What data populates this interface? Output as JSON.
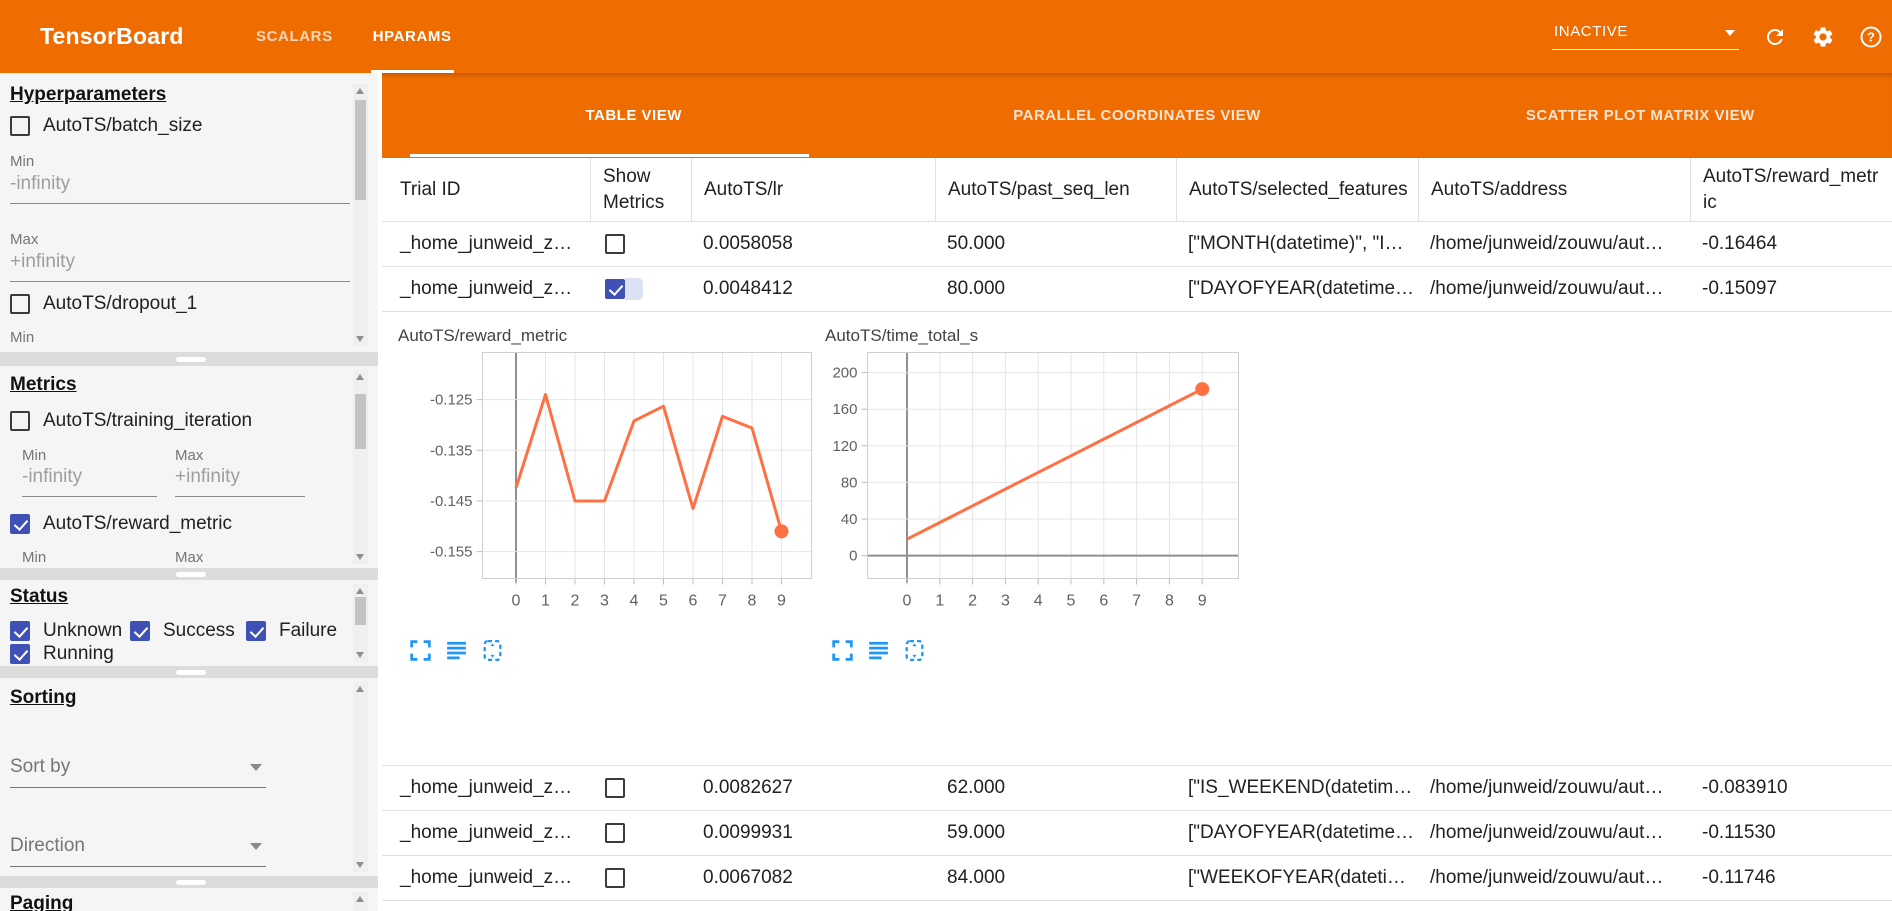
{
  "toolbar": {
    "title": "TensorBoard",
    "tabs": [
      {
        "label": "SCALARS"
      },
      {
        "label": "HPARAMS"
      }
    ],
    "run_status": "INACTIVE"
  },
  "sidebar": {
    "hyperparameters": {
      "heading": "Hyperparameters",
      "param1_label": "AutoTS/batch_size",
      "param1_checked": false,
      "min_label": "Min",
      "min_value": "-infinity",
      "max_label": "Max",
      "max_value": "+infinity",
      "param2_label": "AutoTS/dropout_1",
      "param2_checked": false,
      "min2_label": "Min"
    },
    "metrics": {
      "heading": "Metrics",
      "metric1_label": "AutoTS/training_iteration",
      "metric1_checked": false,
      "min_label": "Min",
      "min_value": "-infinity",
      "max_label": "Max",
      "max_value": "+infinity",
      "metric2_label": "AutoTS/reward_metric",
      "metric2_checked": true,
      "min2_label": "Min",
      "max2_label": "Max"
    },
    "status": {
      "heading": "Status",
      "options": [
        {
          "label": "Unknown",
          "checked": true
        },
        {
          "label": "Success",
          "checked": true
        },
        {
          "label": "Failure",
          "checked": true
        },
        {
          "label": "Running",
          "checked": true
        }
      ]
    },
    "sorting": {
      "heading": "Sorting",
      "sort_by_placeholder": "Sort by",
      "direction_placeholder": "Direction"
    },
    "paging": {
      "heading": "Paging"
    }
  },
  "main": {
    "view_tabs": [
      {
        "label": "TABLE VIEW"
      },
      {
        "label": "PARALLEL COORDINATES VIEW"
      },
      {
        "label": "SCATTER PLOT MATRIX VIEW"
      }
    ],
    "table": {
      "columns": [
        "Trial ID",
        "Show Metrics",
        "AutoTS/lr",
        "AutoTS/past_seq_len",
        "AutoTS/selected_features",
        "AutoTS/address",
        "AutoTS/reward_metric"
      ],
      "rows_top": [
        {
          "trial_id": "_home_junweid_z…",
          "show_metrics": false,
          "lr": "0.0058058",
          "past_seq_len": "50.000",
          "selected_features": "[\"MONTH(datetime)\", \"I…",
          "address": "/home/junweid/zouwu/aut…",
          "reward_metric": "-0.16464"
        },
        {
          "trial_id": "_home_junweid_z…",
          "show_metrics": true,
          "lr": "0.0048412",
          "past_seq_len": "80.000",
          "selected_features": "[\"DAYOFYEAR(datetime…",
          "address": "/home/junweid/zouwu/aut…",
          "reward_metric": "-0.15097"
        }
      ],
      "rows_bottom": [
        {
          "trial_id": "_home_junweid_z…",
          "show_metrics": false,
          "lr": "0.0082627",
          "past_seq_len": "62.000",
          "selected_features": "[\"IS_WEEKEND(datetim…",
          "address": "/home/junweid/zouwu/aut…",
          "reward_metric": "-0.083910"
        },
        {
          "trial_id": "_home_junweid_z…",
          "show_metrics": false,
          "lr": "0.0099931",
          "past_seq_len": "59.000",
          "selected_features": "[\"DAYOFYEAR(datetime…",
          "address": "/home/junweid/zouwu/aut…",
          "reward_metric": "-0.11530"
        },
        {
          "trial_id": "_home_junweid_z…",
          "show_metrics": false,
          "lr": "0.0067082",
          "past_seq_len": "84.000",
          "selected_features": "[\"WEEKOFYEAR(dateti…",
          "address": "/home/junweid/zouwu/aut…",
          "reward_metric": "-0.11746"
        }
      ]
    }
  },
  "chart_data": [
    {
      "type": "line",
      "title": "AutoTS/reward_metric",
      "xlabel": "",
      "ylabel": "",
      "x": [
        0,
        1,
        2,
        3,
        4,
        5,
        6,
        7,
        8,
        9
      ],
      "values": [
        -0.1424,
        -0.124,
        -0.145,
        -0.145,
        -0.1292,
        -0.1263,
        -0.1465,
        -0.1283,
        -0.1306,
        -0.151
      ],
      "yticks": [
        -0.125,
        -0.135,
        -0.145,
        -0.155
      ],
      "ylim": [
        -0.1603,
        -0.1157
      ],
      "grid": true,
      "legend": false,
      "line_color": "#ff7043",
      "end_marker": true,
      "zero_line": false
    },
    {
      "type": "line",
      "title": "AutoTS/time_total_s",
      "xlabel": "",
      "ylabel": "",
      "x": [
        0,
        1,
        2,
        3,
        4,
        5,
        6,
        7,
        8,
        9
      ],
      "values": [
        18,
        36.2,
        54.4,
        72.7,
        90.9,
        109.1,
        127.3,
        145.6,
        163.8,
        182
      ],
      "yticks": [
        0,
        40,
        80,
        120,
        160,
        200
      ],
      "ylim": [
        -25,
        222
      ],
      "grid": true,
      "legend": false,
      "line_color": "#ff7043",
      "end_marker": true,
      "zero_line": true
    }
  ],
  "colors": {
    "toolbar_orange": "#ef6c00",
    "checkbox_indigo": "#3f51b5",
    "chart_line": "#ff7043",
    "action_icon_blue": "#2196f3"
  }
}
